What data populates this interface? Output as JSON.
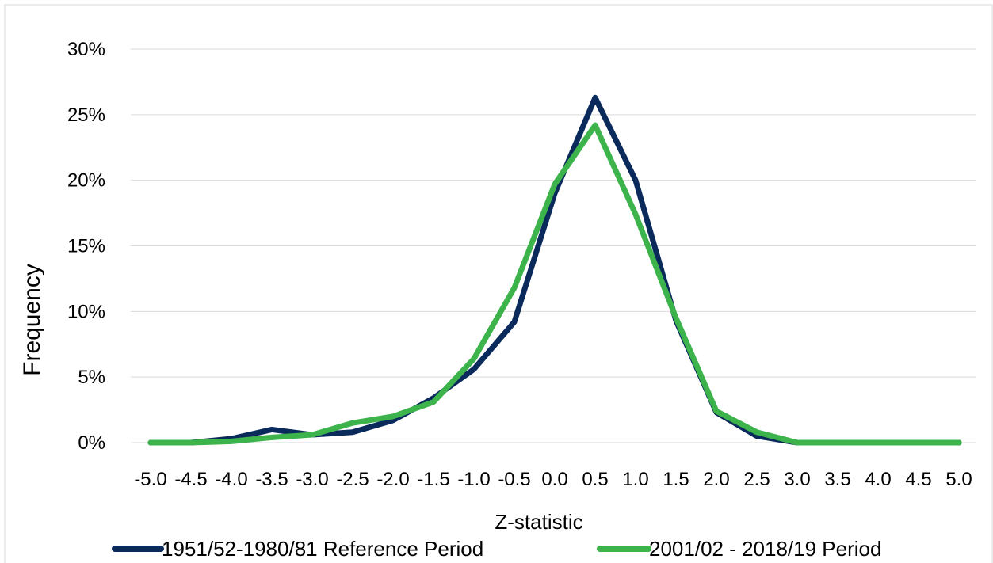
{
  "chart_data": {
    "type": "line",
    "title": "",
    "xlabel": "Z-statistic",
    "ylabel": "Frequency",
    "x": [
      "-5.0",
      "-4.5",
      "-4.0",
      "-3.5",
      "-3.0",
      "-2.5",
      "-2.0",
      "-1.5",
      "-1.0",
      "-0.5",
      "0.0",
      "0.5",
      "1.0",
      "1.5",
      "2.0",
      "2.5",
      "3.0",
      "3.5",
      "4.0",
      "4.5",
      "5.0"
    ],
    "yticks": [
      "0%",
      "5%",
      "10%",
      "15%",
      "20%",
      "25%",
      "30%"
    ],
    "ylim": [
      0,
      30
    ],
    "grid": true,
    "legend": "bottom",
    "series": [
      {
        "name": "1951/52-1980/81 Reference Period",
        "color": "#0a2a5c",
        "values": [
          0,
          0,
          0.3,
          1.0,
          0.6,
          0.8,
          1.7,
          3.4,
          5.6,
          9.2,
          19.0,
          26.3,
          20.0,
          9.3,
          2.3,
          0.5,
          0,
          0,
          0,
          0,
          0
        ]
      },
      {
        "name": "2001/02 - 2018/19 Period",
        "color": "#3cb44b",
        "values": [
          0,
          0,
          0.1,
          0.4,
          0.6,
          1.5,
          2.0,
          3.1,
          6.4,
          11.8,
          19.7,
          24.2,
          17.4,
          9.5,
          2.4,
          0.8,
          0,
          0,
          0,
          0,
          0
        ]
      }
    ]
  }
}
